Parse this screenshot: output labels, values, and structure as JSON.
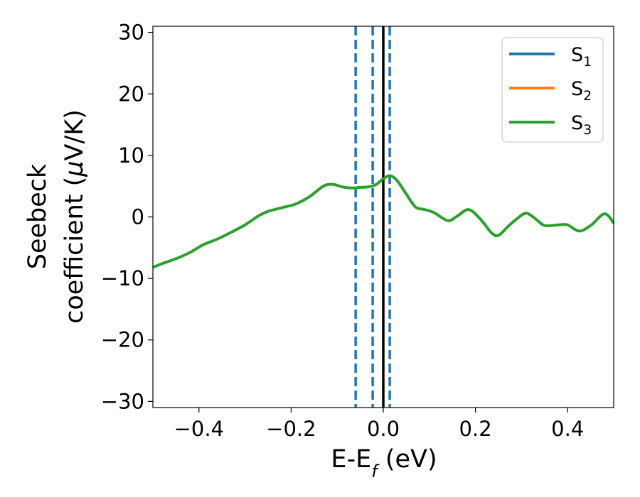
{
  "chart_data": {
    "type": "line",
    "xlabel": {
      "main": "E-E",
      "sub": "f",
      "unit": " (eV)"
    },
    "ylabel": {
      "line1": "Seebeck",
      "line2": "coefficient  (",
      "mu": "μ",
      "unit": "V/K)"
    },
    "xlim": [
      -0.5,
      0.5
    ],
    "ylim": [
      -31,
      31
    ],
    "xticks": [
      -0.4,
      -0.2,
      0.0,
      0.2,
      0.4
    ],
    "xtick_labels": [
      "−0.4",
      "−0.2",
      "0.0",
      "0.2",
      "0.4"
    ],
    "yticks": [
      -30,
      -20,
      -10,
      0,
      10,
      20,
      30
    ],
    "ytick_labels": [
      "−30",
      "−20",
      "−10",
      "0",
      "10",
      "20",
      "30"
    ],
    "grid": false,
    "legend_position": "top-right",
    "legend": [
      {
        "main": "S",
        "sub": "1",
        "color": "#1f77b4"
      },
      {
        "main": "S",
        "sub": "2",
        "color": "#ff7f0e"
      },
      {
        "main": "S",
        "sub": "3",
        "color": "#2ca02c"
      }
    ],
    "vlines": [
      {
        "x": -0.06,
        "style": "dashed",
        "color": "#1f77b4"
      },
      {
        "x": -0.023,
        "style": "dashed",
        "color": "#1f77b4"
      },
      {
        "x": 0.0,
        "style": "solid",
        "color": "#000000"
      },
      {
        "x": 0.014,
        "style": "dashed",
        "color": "#1f77b4"
      }
    ],
    "series": [
      {
        "color": "#2ca02c",
        "x": [
          -0.5,
          -0.48,
          -0.45,
          -0.42,
          -0.39,
          -0.36,
          -0.33,
          -0.3,
          -0.27,
          -0.25,
          -0.22,
          -0.19,
          -0.16,
          -0.13,
          -0.11,
          -0.09,
          -0.07,
          -0.05,
          -0.03,
          -0.015,
          0.0,
          0.015,
          0.03,
          0.05,
          0.07,
          0.09,
          0.11,
          0.14,
          0.16,
          0.185,
          0.21,
          0.235,
          0.25,
          0.27,
          0.29,
          0.31,
          0.33,
          0.35,
          0.38,
          0.4,
          0.425,
          0.45,
          0.48,
          0.5
        ],
        "values": [
          -8.2,
          -7.6,
          -6.8,
          -5.8,
          -4.5,
          -3.6,
          -2.5,
          -1.3,
          0.2,
          0.9,
          1.5,
          2.1,
          3.3,
          5.0,
          5.3,
          4.9,
          4.7,
          4.8,
          4.9,
          5.3,
          6.2,
          6.7,
          5.9,
          3.7,
          1.6,
          1.2,
          0.7,
          -0.6,
          0.1,
          1.2,
          -0.3,
          -2.6,
          -3.0,
          -1.6,
          -0.3,
          0.6,
          -0.3,
          -1.4,
          -1.3,
          -1.3,
          -2.3,
          -1.4,
          0.5,
          -1.0
        ]
      }
    ]
  }
}
